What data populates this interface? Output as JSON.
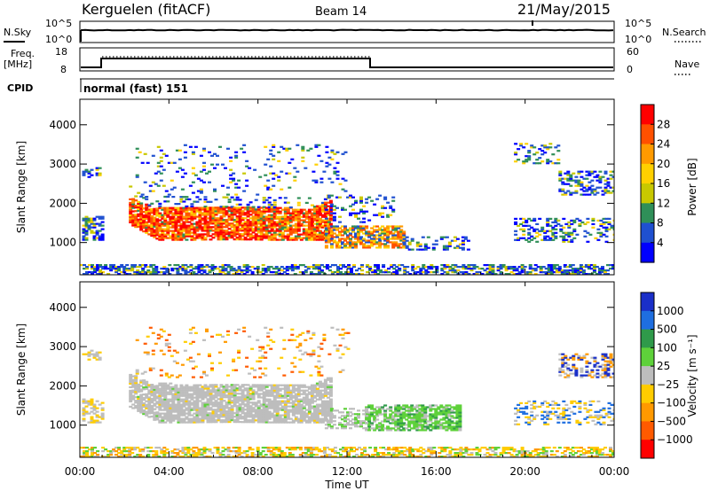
{
  "header": {
    "station": "Kerguelen (fitACF)",
    "beam": "Beam 14",
    "date": "21/May/2015"
  },
  "nsky_panel": {
    "left_label": "N.Sky",
    "left_ticks": [
      "10^5",
      "10^0"
    ],
    "right_label": "N.Search",
    "right_ticks": [
      "10^5",
      "10^0"
    ]
  },
  "freq_panel": {
    "left_label_line1": "Freq.",
    "left_label_line2": "[MHz]",
    "left_ticks": [
      "18",
      "8"
    ],
    "right_label": "Nave",
    "right_ticks": [
      "60",
      "0"
    ]
  },
  "cpid_panel": {
    "label": "CPID",
    "mode": "normal (fast) 151"
  },
  "power_panel": {
    "ylabel": "Slant Range [km]",
    "colorbar_label": "Power [dB]",
    "colorbar_ticks": [
      "28",
      "24",
      "20",
      "16",
      "12",
      "8",
      "4"
    ],
    "colors": [
      "#ff0000",
      "#ff5000",
      "#ff9a00",
      "#ffd000",
      "#c8c800",
      "#2f8f58",
      "#1f50d0",
      "#0000ff"
    ]
  },
  "velocity_panel": {
    "ylabel": "Slant Range [km]",
    "colorbar_label": "Velocity [m s⁻¹]",
    "colorbar_ticks": [
      "1000",
      "500",
      "100",
      "25",
      "−25",
      "−100",
      "−500",
      "−1000"
    ],
    "colors": [
      "#1a2fc8",
      "#1e6ee0",
      "#2f9a4a",
      "#5ed13a",
      "#bdbdbd",
      "#ffcc00",
      "#ff9900",
      "#ff5a00",
      "#ff0000"
    ]
  },
  "x_axis_label": "Time UT",
  "chart_data": [
    {
      "type": "heatmap",
      "name": "power",
      "xlabel": "Time UT",
      "ylabel": "Slant Range [km]",
      "x_ticks": [
        "00:00",
        "04:00",
        "08:00",
        "12:00",
        "16:00",
        "20:00",
        "00:00"
      ],
      "y_ticks": [
        1000,
        2000,
        3000,
        4000
      ],
      "xlim_hours": [
        0,
        24
      ],
      "ylim": [
        180,
        4650
      ],
      "colorbar_label": "Power [dB]",
      "colorbar_ticks": [
        28,
        24,
        20,
        16,
        12,
        8,
        4
      ],
      "features": [
        {
          "t0": 2.2,
          "t1": 11.3,
          "r0": 1050,
          "r1": 1900,
          "level": "high",
          "description": "main band"
        },
        {
          "t0": 11.0,
          "t1": 14.5,
          "r0": 900,
          "r1": 1400,
          "level": "medium"
        },
        {
          "t0": 0.1,
          "t1": 1.0,
          "r0": 1100,
          "r1": 1600,
          "level": "low"
        },
        {
          "t0": 19.5,
          "t1": 24.0,
          "r0": 2200,
          "r1": 3500,
          "level": "low"
        },
        {
          "t0": 0.0,
          "t1": 24.0,
          "r0": 180,
          "r1": 400,
          "level": "low"
        }
      ]
    },
    {
      "type": "heatmap",
      "name": "velocity",
      "xlabel": "Time UT",
      "ylabel": "Slant Range [km]",
      "x_ticks": [
        "00:00",
        "04:00",
        "08:00",
        "12:00",
        "16:00",
        "20:00",
        "00:00"
      ],
      "y_ticks": [
        1000,
        2000,
        3000,
        4000
      ],
      "xlim_hours": [
        0,
        24
      ],
      "ylim": [
        180,
        4650
      ],
      "colorbar_label": "Velocity [m s⁻¹]",
      "colorbar_ticks": [
        1000,
        500,
        100,
        25,
        -25,
        -100,
        -500,
        -1000
      ],
      "features": [
        {
          "t0": 2.2,
          "t1": 11.3,
          "r0": 1050,
          "r1": 1900,
          "velocity": "near zero (grey)"
        },
        {
          "t0": 12.8,
          "t1": 17.0,
          "r0": 900,
          "r1": 1500,
          "velocity": "positive ~100 (green)"
        },
        {
          "t0": 0.0,
          "t1": 8.0,
          "r0": 180,
          "r1": 400,
          "velocity": "negative small (yellow)"
        }
      ]
    }
  ]
}
